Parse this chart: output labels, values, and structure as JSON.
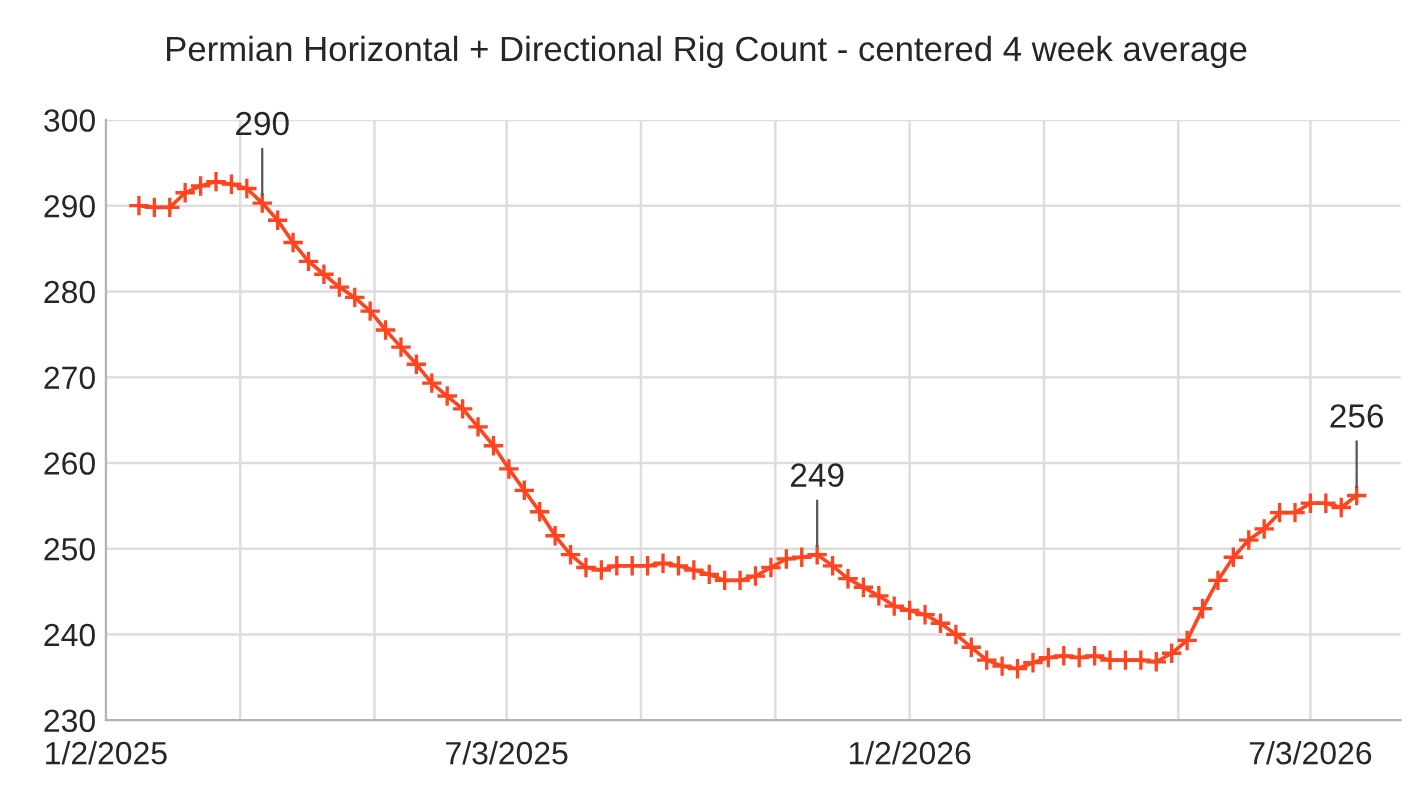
{
  "chart_data": {
    "type": "line",
    "title": "Permian Horizontal + Directional Rig Count - centered 4 week average",
    "x": [
      "2025-01-17",
      "2025-01-24",
      "2025-01-31",
      "2025-02-07",
      "2025-02-14",
      "2025-02-21",
      "2025-02-28",
      "2025-03-07",
      "2025-03-14",
      "2025-03-21",
      "2025-03-28",
      "2025-04-04",
      "2025-04-11",
      "2025-04-18",
      "2025-04-25",
      "2025-05-02",
      "2025-05-09",
      "2025-05-16",
      "2025-05-23",
      "2025-05-30",
      "2025-06-06",
      "2025-06-13",
      "2025-06-20",
      "2025-06-27",
      "2025-07-04",
      "2025-07-11",
      "2025-07-18",
      "2025-07-25",
      "2025-08-01",
      "2025-08-08",
      "2025-08-15",
      "2025-08-22",
      "2025-08-29",
      "2025-09-05",
      "2025-09-12",
      "2025-09-19",
      "2025-09-26",
      "2025-10-03",
      "2025-10-10",
      "2025-10-17",
      "2025-10-24",
      "2025-10-31",
      "2025-11-07",
      "2025-11-14",
      "2025-11-21",
      "2025-11-28",
      "2025-12-05",
      "2025-12-12",
      "2025-12-19",
      "2025-12-26",
      "2026-01-02",
      "2026-01-09",
      "2026-01-16",
      "2026-01-23",
      "2026-01-30",
      "2026-02-06",
      "2026-02-13",
      "2026-02-20",
      "2026-02-27",
      "2026-03-06",
      "2026-03-13",
      "2026-03-20",
      "2026-03-27",
      "2026-04-03",
      "2026-04-10",
      "2026-04-17",
      "2026-04-24",
      "2026-05-01",
      "2026-05-08",
      "2026-05-15",
      "2026-05-22",
      "2026-05-29",
      "2026-06-05",
      "2026-06-12",
      "2026-06-19",
      "2026-06-26",
      "2026-07-03",
      "2026-07-10",
      "2026-07-17",
      "2026-07-24"
    ],
    "series": [
      {
        "color": "#ff4420",
        "values": [
          290.0,
          289.8,
          289.8,
          291.5,
          292.3,
          292.8,
          292.5,
          292.0,
          290.3,
          288.3,
          285.7,
          283.5,
          282.0,
          280.5,
          279.3,
          277.7,
          275.5,
          273.5,
          271.5,
          269.3,
          267.8,
          266.3,
          264.2,
          262.0,
          259.3,
          256.8,
          254.3,
          251.5,
          249.3,
          247.8,
          247.5,
          248.0,
          248.0,
          248.0,
          248.3,
          248.0,
          247.5,
          247.0,
          246.3,
          246.3,
          246.8,
          247.8,
          248.8,
          249.0,
          249.3,
          248.0,
          246.5,
          245.5,
          244.5,
          243.3,
          242.8,
          242.3,
          241.3,
          240.0,
          238.5,
          237.0,
          236.3,
          236.0,
          236.7,
          237.3,
          237.5,
          237.3,
          237.5,
          237.0,
          237.0,
          237.0,
          236.8,
          237.8,
          239.3,
          243.0,
          246.3,
          249.0,
          251.0,
          252.3,
          254.2,
          254.2,
          255.3,
          255.3,
          254.8,
          256.2
        ]
      }
    ],
    "xlim": [
      "2025-01-02",
      "2026-08-13"
    ],
    "xticks": [
      {
        "value": "2025-01-02",
        "label": "1/2/2025"
      },
      {
        "value": "2025-03-04",
        "label": null
      },
      {
        "value": "2025-05-04",
        "label": null
      },
      {
        "value": "2025-07-03",
        "label": "7/3/2025"
      },
      {
        "value": "2025-09-02",
        "label": null
      },
      {
        "value": "2025-11-02",
        "label": null
      },
      {
        "value": "2026-01-02",
        "label": "1/2/2026"
      },
      {
        "value": "2026-03-04",
        "label": null
      },
      {
        "value": "2026-05-04",
        "label": null
      },
      {
        "value": "2026-07-03",
        "label": "7/3/2026"
      }
    ],
    "ylim": [
      230,
      300
    ],
    "yticks": [
      230,
      240,
      250,
      260,
      270,
      280,
      290,
      300
    ],
    "annotations": [
      {
        "text": "290",
        "x": "2025-03-14",
        "y": 290.3
      },
      {
        "text": "249",
        "x": "2025-11-21",
        "y": 249.3
      },
      {
        "text": "256",
        "x": "2026-07-24",
        "y": 256.2
      }
    ],
    "grid": true,
    "marker": "cross",
    "line_style": "solid",
    "legend": false
  }
}
